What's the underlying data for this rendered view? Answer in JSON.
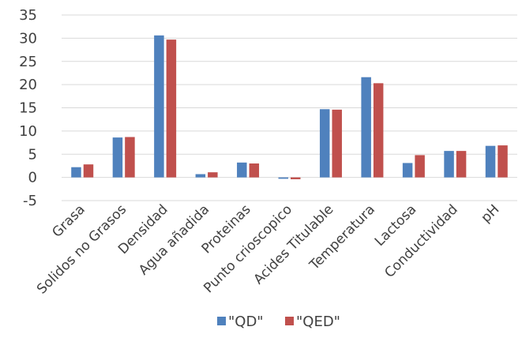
{
  "chart_data": {
    "type": "bar",
    "categories": [
      "Grasa",
      "Solidos no Grasos",
      "Densidad",
      "Agua añadida",
      "Proteinas",
      "Punto crioscopico",
      "Acides Titulable",
      "Temperatura",
      "Lactosa",
      "Conductividad",
      "pH"
    ],
    "series": [
      {
        "name": "\"QD\"",
        "color": "#4F81BD",
        "values": [
          2.2,
          8.6,
          30.6,
          0.7,
          3.2,
          -0.3,
          14.7,
          21.6,
          3.1,
          5.7,
          6.8
        ]
      },
      {
        "name": "\"QED\"",
        "color": "#C0504D",
        "values": [
          2.8,
          8.7,
          29.7,
          1.1,
          3.0,
          -0.4,
          14.6,
          20.3,
          4.8,
          5.7,
          6.9
        ]
      }
    ],
    "ylim": [
      -5,
      35
    ],
    "yticks": [
      "-5",
      "0",
      "5",
      "10",
      "15",
      "20",
      "25",
      "30",
      "35"
    ],
    "grid": true,
    "legend": "bottom"
  }
}
